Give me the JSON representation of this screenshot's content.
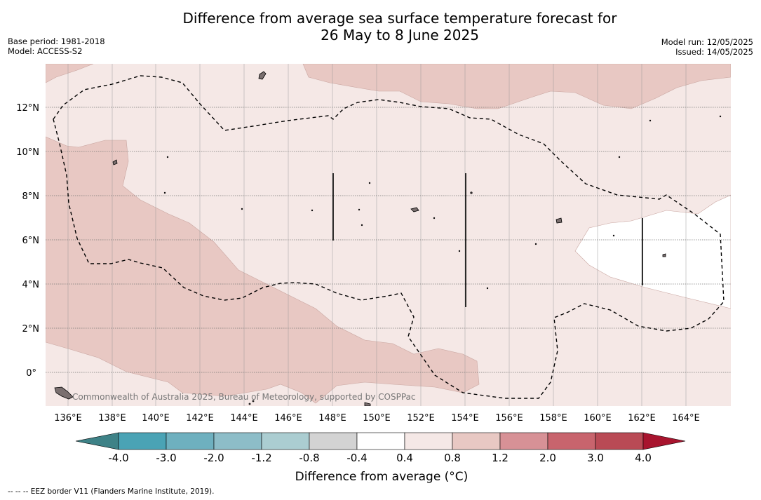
{
  "title_line1": "Difference from average sea surface temperature forecast for",
  "title_line2": "26 May to 8 June 2025",
  "meta_left": {
    "base_period": "Base period: 1981-2018",
    "model": "Model: ACCESS-S2"
  },
  "meta_right": {
    "model_run": "Model run: 12/05/2025",
    "issued": "Issued: 14/05/2025"
  },
  "map": {
    "lon_range": [
      135,
      166
    ],
    "lat_range": [
      -1.5,
      14
    ],
    "lon_ticks": [
      "136°E",
      "138°E",
      "140°E",
      "142°E",
      "144°E",
      "146°E",
      "148°E",
      "150°E",
      "152°E",
      "154°E",
      "156°E",
      "158°E",
      "160°E",
      "162°E",
      "164°E"
    ],
    "lat_ticks": [
      "12°N",
      "10°N",
      "8°N",
      "6°N",
      "4°N",
      "2°N",
      "0°"
    ],
    "watermark": "Commonwealth of Australia 2025, Bureau of Meteorology, supported by COSPPac",
    "colors": {
      "anomaly_0_4_0_8": "#f5e8e6",
      "anomaly_0_8_1_2": "#e8c8c3",
      "anomaly_m0_4_0_4": "#ffffff",
      "land": "#7a6f6f"
    },
    "gridlines": true
  },
  "colorbar": {
    "label": "Difference from average (°C)",
    "ticks": [
      "-4.0",
      "-3.0",
      "-2.0",
      "-1.2",
      "-0.8",
      "-0.4",
      "0.4",
      "0.8",
      "1.2",
      "2.0",
      "3.0",
      "4.0"
    ],
    "colors": [
      "#4aa3b5",
      "#6eb0bf",
      "#8dbdc8",
      "#abcdd1",
      "#d3d3d3",
      "#ffffff",
      "#f5e8e6",
      "#e8c8c3",
      "#d79196",
      "#c8646d",
      "#b94a55"
    ],
    "under_color": "#3e8287",
    "over_color": "#a8142e"
  },
  "footnote": "--  --  -- EEZ border V11 (Flanders Marine Institute, 2019)."
}
